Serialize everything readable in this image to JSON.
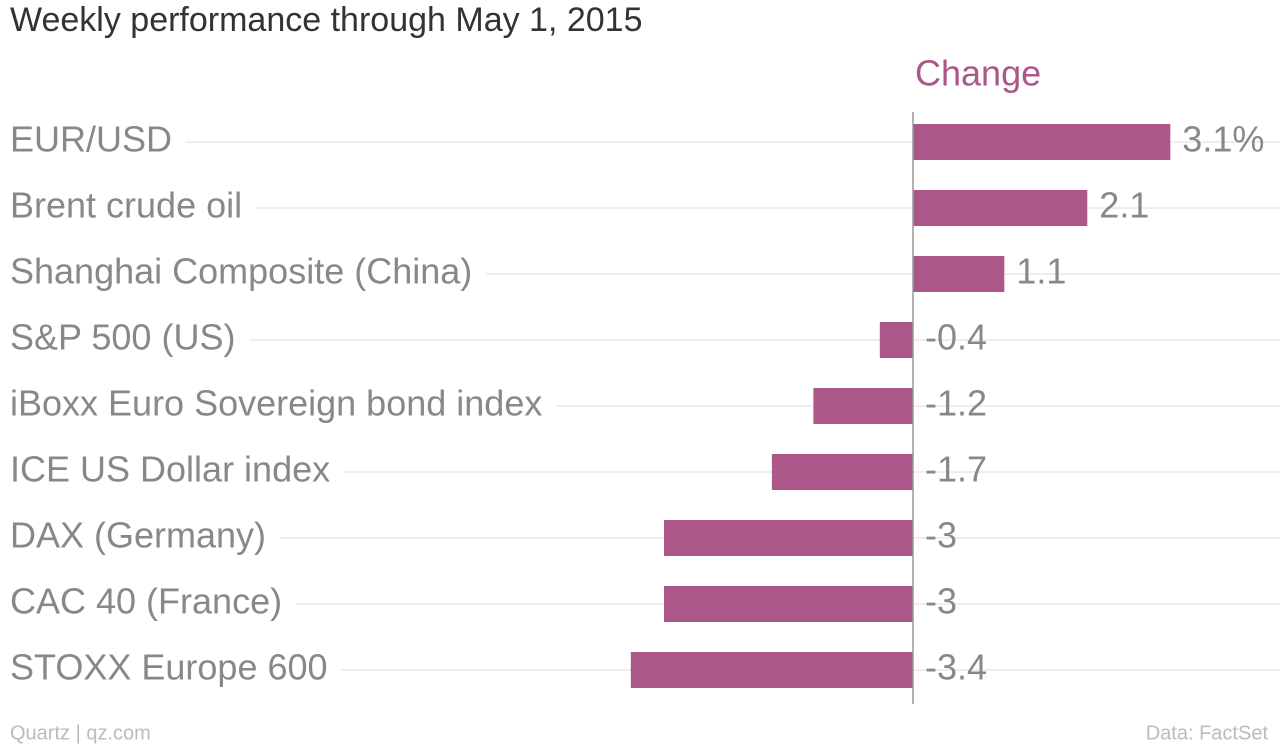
{
  "chart_data": {
    "type": "hbar",
    "title": "Weekly performance through May 1, 2015",
    "categories": [
      "EUR/USD",
      "Brent crude oil",
      "Shanghai Composite (China)",
      "S&P 500 (US)",
      "iBoxx Euro Sovereign bond index",
      "ICE US Dollar index",
      "DAX (Germany)",
      "CAC 40 (France)",
      "STOXX Europe 600"
    ],
    "series": [
      {
        "name": "Change",
        "color": "#ab5787",
        "values": [
          3.1,
          2.1,
          1.1,
          -0.4,
          -1.2,
          -1.7,
          -3,
          -3,
          -3.4
        ],
        "value_labels": [
          "3.1%",
          "2.1",
          "1.1",
          "-0.4",
          "-1.2",
          "-1.7",
          "-3",
          "-3",
          "-3.4"
        ]
      }
    ],
    "source": "Data: FactSet",
    "credit": "Quartz | qz.com"
  }
}
